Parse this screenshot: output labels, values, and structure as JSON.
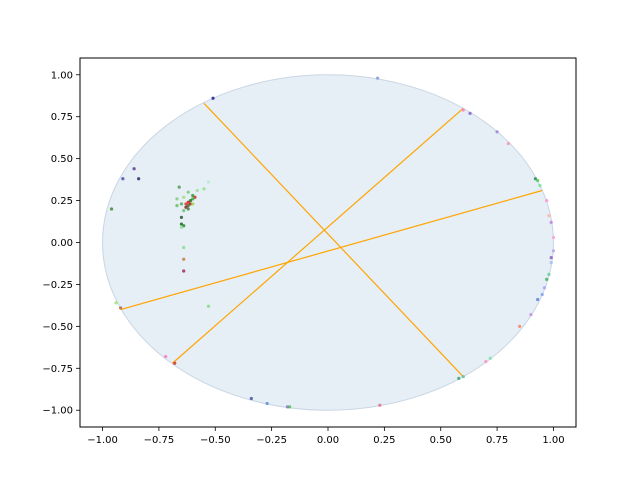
{
  "chart_data": {
    "type": "scatter",
    "title": "",
    "xlabel": "",
    "ylabel": "",
    "xlim": [
      -1.1,
      1.1
    ],
    "ylim": [
      -1.1,
      1.1
    ],
    "xticks": [
      "−1.00",
      "−0.75",
      "−0.50",
      "−0.25",
      "0.00",
      "0.25",
      "0.50",
      "0.75",
      "1.00"
    ],
    "xtick_values": [
      -1.0,
      -0.75,
      -0.5,
      -0.25,
      0.0,
      0.25,
      0.5,
      0.75,
      1.0
    ],
    "yticks": [
      "−1.00",
      "−0.75",
      "−0.50",
      "−0.25",
      "0.00",
      "0.25",
      "0.50",
      "0.75",
      "1.00"
    ],
    "ytick_values": [
      -1.0,
      -0.75,
      -0.5,
      -0.25,
      0.0,
      0.25,
      0.5,
      0.75,
      1.0
    ],
    "grid": false,
    "disk": {
      "center": [
        0,
        0
      ],
      "radius": 1,
      "fill": "#e6eef6",
      "stroke": "#c9d6e3"
    },
    "geodesics": {
      "color": "#ffa500",
      "segments": [
        [
          [
            -0.55,
            0.83
          ],
          [
            0.6,
            -0.8
          ]
        ],
        [
          [
            -0.69,
            -0.72
          ],
          [
            0.6,
            0.8
          ]
        ],
        [
          [
            -0.92,
            -0.4
          ],
          [
            0.95,
            0.31
          ]
        ]
      ]
    },
    "points": [
      {
        "x": -0.51,
        "y": 0.86,
        "c": "#1f1f8f"
      },
      {
        "x": 0.22,
        "y": 0.98,
        "c": "#8a9ad6"
      },
      {
        "x": 0.6,
        "y": 0.79,
        "c": "#ff7eb6"
      },
      {
        "x": 0.63,
        "y": 0.77,
        "c": "#8a5fcf"
      },
      {
        "x": 0.75,
        "y": 0.66,
        "c": "#9a7fe0"
      },
      {
        "x": 0.8,
        "y": 0.59,
        "c": "#ff8fb0"
      },
      {
        "x": 0.92,
        "y": 0.38,
        "c": "#2e8b57"
      },
      {
        "x": 0.93,
        "y": 0.37,
        "c": "#4fcf4f"
      },
      {
        "x": 0.94,
        "y": 0.34,
        "c": "#6fdf9f"
      },
      {
        "x": 0.97,
        "y": 0.25,
        "c": "#ff90d0"
      },
      {
        "x": 0.98,
        "y": 0.16,
        "c": "#ffb0a0"
      },
      {
        "x": 0.99,
        "y": 0.12,
        "c": "#c080e0"
      },
      {
        "x": 1.0,
        "y": 0.03,
        "c": "#ff9fd0"
      },
      {
        "x": 1.0,
        "y": -0.05,
        "c": "#c0a0f0"
      },
      {
        "x": 0.99,
        "y": -0.09,
        "c": "#8060c0"
      },
      {
        "x": 0.99,
        "y": -0.12,
        "c": "#a0c0f0"
      },
      {
        "x": 0.98,
        "y": -0.19,
        "c": "#60d0a0"
      },
      {
        "x": 0.97,
        "y": -0.22,
        "c": "#40b060"
      },
      {
        "x": 0.96,
        "y": -0.27,
        "c": "#a0a0ff"
      },
      {
        "x": 0.95,
        "y": -0.31,
        "c": "#80a0f0"
      },
      {
        "x": 0.93,
        "y": -0.34,
        "c": "#6080e0"
      },
      {
        "x": 0.9,
        "y": -0.43,
        "c": "#c090e0"
      },
      {
        "x": 0.85,
        "y": -0.5,
        "c": "#ff8060"
      },
      {
        "x": 0.7,
        "y": -0.71,
        "c": "#ff90c0"
      },
      {
        "x": 0.72,
        "y": -0.69,
        "c": "#80e0a0"
      },
      {
        "x": 0.58,
        "y": -0.81,
        "c": "#40a070"
      },
      {
        "x": 0.6,
        "y": -0.8,
        "c": "#60c0a0"
      },
      {
        "x": 0.23,
        "y": -0.97,
        "c": "#e07090"
      },
      {
        "x": -0.17,
        "y": -0.98,
        "c": "#50c050"
      },
      {
        "x": -0.18,
        "y": -0.98,
        "c": "#8080c0"
      },
      {
        "x": -0.27,
        "y": -0.96,
        "c": "#6090d0"
      },
      {
        "x": -0.34,
        "y": -0.93,
        "c": "#5050a0"
      },
      {
        "x": -0.68,
        "y": -0.72,
        "c": "#d03030"
      },
      {
        "x": -0.72,
        "y": -0.68,
        "c": "#ff70c0"
      },
      {
        "x": -0.92,
        "y": -0.39,
        "c": "#c06040"
      },
      {
        "x": -0.94,
        "y": -0.36,
        "c": "#9fdf6f"
      },
      {
        "x": -0.96,
        "y": 0.2,
        "c": "#3a8a3a"
      },
      {
        "x": -0.91,
        "y": 0.38,
        "c": "#4a4aaa"
      },
      {
        "x": -0.86,
        "y": 0.44,
        "c": "#5a3a8a"
      },
      {
        "x": -0.84,
        "y": 0.38,
        "c": "#2a2a6a"
      },
      {
        "x": -0.53,
        "y": -0.38,
        "c": "#7fdf7f"
      },
      {
        "x": -0.66,
        "y": 0.33,
        "c": "#4a9a4a"
      },
      {
        "x": -0.62,
        "y": 0.3,
        "c": "#6fcf6f"
      },
      {
        "x": -0.58,
        "y": 0.31,
        "c": "#9fdf9f"
      },
      {
        "x": -0.55,
        "y": 0.32,
        "c": "#8fdf8f"
      },
      {
        "x": -0.53,
        "y": 0.36,
        "c": "#afefcf"
      },
      {
        "x": -0.6,
        "y": 0.28,
        "c": "#2a9a2a"
      },
      {
        "x": -0.59,
        "y": 0.27,
        "c": "#c03030"
      },
      {
        "x": -0.6,
        "y": 0.26,
        "c": "#3aaa3a"
      },
      {
        "x": -0.61,
        "y": 0.25,
        "c": "#1a7a1a"
      },
      {
        "x": -0.62,
        "y": 0.24,
        "c": "#d02020"
      },
      {
        "x": -0.61,
        "y": 0.23,
        "c": "#b02020"
      },
      {
        "x": -0.63,
        "y": 0.23,
        "c": "#e03030"
      },
      {
        "x": -0.62,
        "y": 0.22,
        "c": "#2a7a2a"
      },
      {
        "x": -0.6,
        "y": 0.23,
        "c": "#a0d040"
      },
      {
        "x": -0.63,
        "y": 0.21,
        "c": "#8b2020"
      },
      {
        "x": -0.62,
        "y": 0.2,
        "c": "#3a8a3a"
      },
      {
        "x": -0.64,
        "y": 0.19,
        "c": "#6fbf6f"
      },
      {
        "x": -0.65,
        "y": 0.23,
        "c": "#4faf4f"
      },
      {
        "x": -0.67,
        "y": 0.22,
        "c": "#5fbf5f"
      },
      {
        "x": -0.67,
        "y": 0.26,
        "c": "#7fcf7f"
      },
      {
        "x": -0.64,
        "y": 0.27,
        "c": "#9fdf7f"
      },
      {
        "x": -0.65,
        "y": 0.15,
        "c": "#2a5a2a"
      },
      {
        "x": -0.65,
        "y": 0.11,
        "c": "#1a6a1a"
      },
      {
        "x": -0.64,
        "y": 0.1,
        "c": "#2a8a2a"
      },
      {
        "x": -0.65,
        "y": 0.09,
        "c": "#8fdf9f"
      },
      {
        "x": -0.64,
        "y": -0.03,
        "c": "#7fdf8f"
      },
      {
        "x": -0.64,
        "y": -0.1,
        "c": "#c08040"
      },
      {
        "x": -0.64,
        "y": -0.17,
        "c": "#9a2a5a"
      }
    ]
  }
}
